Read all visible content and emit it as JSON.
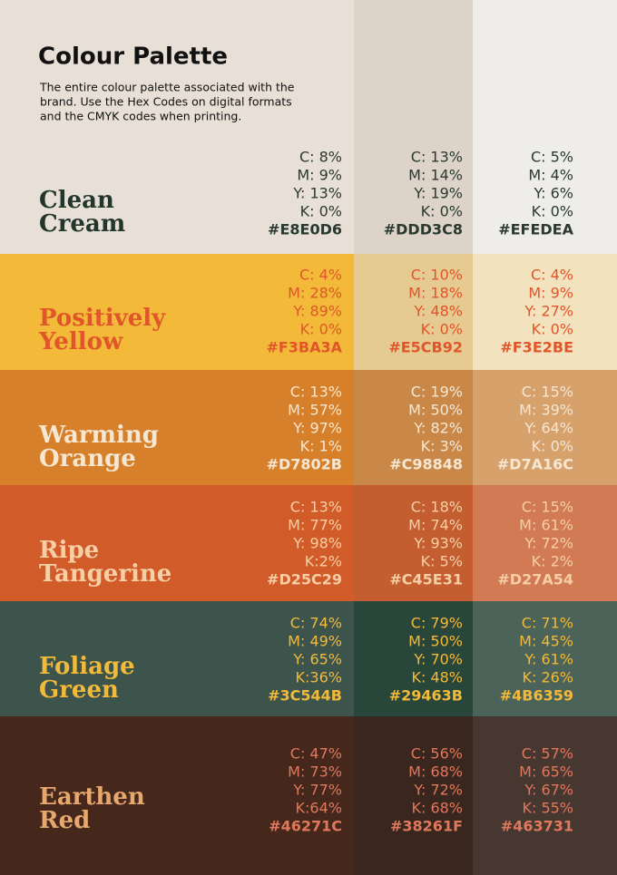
{
  "header": {
    "title": "Colour Palette",
    "description": [
      "The entire colour palette associated with the",
      "brand. Use the Hex Codes on digital formats",
      "and the CMYK codes when printing."
    ]
  },
  "palettes": [
    {
      "name": [
        "Clean",
        "Cream"
      ],
      "swatches": [
        {
          "c": "C: 8%",
          "m": "M: 9%",
          "y": "Y: 13%",
          "k": "K: 0%",
          "hex": "#E8E0D6"
        },
        {
          "c": "C: 13%",
          "m": "M: 14%",
          "y": "Y: 19%",
          "k": "K: 0%",
          "hex": "#DDD3C8"
        },
        {
          "c": "C: 5%",
          "m": "M: 4%",
          "y": "Y: 6%",
          "k": "K: 0%",
          "hex": "#EFEDEA"
        }
      ]
    },
    {
      "name": [
        "Positively",
        "Yellow"
      ],
      "swatches": [
        {
          "c": "C: 4%",
          "m": "M: 28%",
          "y": "Y: 89%",
          "k": "K: 0%",
          "hex": "#F3BA3A"
        },
        {
          "c": "C: 10%",
          "m": "M: 18%",
          "y": "Y: 48%",
          "k": "K: 0%",
          "hex": "#E5CB92"
        },
        {
          "c": "C: 4%",
          "m": "M: 9%",
          "y": "Y: 27%",
          "k": "K: 0%",
          "hex": "#F3E2BE"
        }
      ]
    },
    {
      "name": [
        "Warming",
        "Orange"
      ],
      "swatches": [
        {
          "c": "C: 13%",
          "m": "M: 57%",
          "y": "Y: 97%",
          "k": "K: 1%",
          "hex": "#D7802B"
        },
        {
          "c": "C: 19%",
          "m": "M: 50%",
          "y": "Y: 82%",
          "k": "K: 3%",
          "hex": "#C98848"
        },
        {
          "c": "C: 15%",
          "m": "M: 39%",
          "y": "Y: 64%",
          "k": "K: 0%",
          "hex": "#D7A16C"
        }
      ]
    },
    {
      "name": [
        "Ripe",
        "Tangerine"
      ],
      "swatches": [
        {
          "c": "C: 13%",
          "m": "M: 77%",
          "y": "Y: 98%",
          "k": "K:2%",
          "hex": "#D25C29"
        },
        {
          "c": "C: 18%",
          "m": "M: 74%",
          "y": "Y: 93%",
          "k": "K: 5%",
          "hex": "#C45E31"
        },
        {
          "c": "C: 15%",
          "m": "M: 61%",
          "y": "Y: 72%",
          "k": "K: 2%",
          "hex": "#D27A54"
        }
      ]
    },
    {
      "name": [
        "Foliage",
        "Green"
      ],
      "swatches": [
        {
          "c": "C: 74%",
          "m": "M: 49%",
          "y": "Y: 65%",
          "k": "K:36%",
          "hex": "#3C544B"
        },
        {
          "c": "C: 79%",
          "m": "M: 50%",
          "y": "Y: 70%",
          "k": "K: 48%",
          "hex": "#29463B"
        },
        {
          "c": "C: 71%",
          "m": "M: 45%",
          "y": "Y: 61%",
          "k": "K: 26%",
          "hex": "#4B6359"
        }
      ]
    },
    {
      "name": [
        "Earthen",
        "Red"
      ],
      "swatches": [
        {
          "c": "C: 47%",
          "m": "M: 73%",
          "y": "Y: 77%",
          "k": "K:64%",
          "hex": "#46271C"
        },
        {
          "c": "C: 56%",
          "m": "M: 68%",
          "y": "Y: 72%",
          "k": "K: 68%",
          "hex": "#38261F"
        },
        {
          "c": "C: 57%",
          "m": "M: 65%",
          "y": "Y: 67%",
          "k": "K: 55%",
          "hex": "#463731"
        }
      ]
    }
  ]
}
